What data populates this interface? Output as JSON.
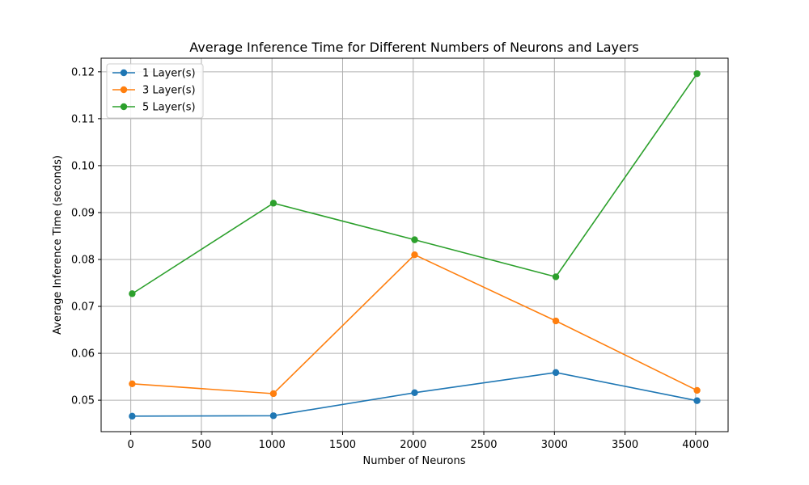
{
  "chart_data": {
    "type": "line",
    "title": "Average Inference Time for Different Numbers of Neurons and Layers",
    "xlabel": "Number of Neurons",
    "ylabel": "Average Inference Time (seconds)",
    "x": [
      10,
      1010,
      2010,
      3010,
      4010
    ],
    "xlim": [
      -210,
      4230
    ],
    "ylim": [
      0.0433,
      0.1229
    ],
    "xticks": [
      0,
      500,
      1000,
      1500,
      2000,
      2500,
      3000,
      3500,
      4000
    ],
    "yticks": [
      0.05,
      0.06,
      0.07,
      0.08,
      0.09,
      0.1,
      0.11,
      0.12
    ],
    "ytick_labels": [
      "0.05",
      "0.06",
      "0.07",
      "0.08",
      "0.09",
      "0.10",
      "0.11",
      "0.12"
    ],
    "grid": true,
    "legend_position": "top-left",
    "series": [
      {
        "name": "1 Layer(s)",
        "color": "#1f77b4",
        "values": [
          0.0466,
          0.0467,
          0.0516,
          0.0559,
          0.0499
        ]
      },
      {
        "name": "3 Layer(s)",
        "color": "#ff7f0e",
        "values": [
          0.0535,
          0.0514,
          0.081,
          0.0669,
          0.0521
        ]
      },
      {
        "name": "5 Layer(s)",
        "color": "#2ca02c",
        "values": [
          0.0727,
          0.092,
          0.0842,
          0.0763,
          0.1196
        ]
      }
    ]
  }
}
